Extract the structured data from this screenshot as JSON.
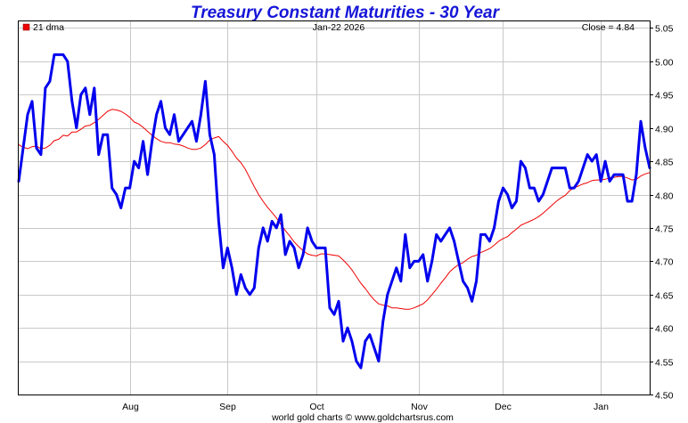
{
  "chart_data": {
    "type": "line",
    "title": "Treasury Constant Maturities - 30 Year",
    "legend_label": "21 dma",
    "date_label": "Jan-22  2026",
    "close_label": "Close = 4.84",
    "footer": "world gold charts © www.goldchartsrus.com",
    "ylim": [
      4.5,
      5.06
    ],
    "yticks": [
      "4.50",
      "4.55",
      "4.60",
      "4.65",
      "4.70",
      "4.75",
      "4.80",
      "4.85",
      "4.90",
      "4.95",
      "5.00",
      "5.05"
    ],
    "xticks": [
      {
        "label": "Aug",
        "index": 25
      },
      {
        "label": "Sep",
        "index": 47
      },
      {
        "label": "Oct",
        "index": 67
      },
      {
        "label": "Nov",
        "index": 90
      },
      {
        "label": "Dec",
        "index": 109
      },
      {
        "label": "Jan",
        "index": 131
      }
    ],
    "n_points": 143,
    "series": [
      {
        "name": "30 Year Yield",
        "color": "#0000ee",
        "values": [
          4.82,
          4.87,
          4.92,
          4.94,
          4.87,
          4.86,
          4.96,
          4.97,
          5.01,
          5.01,
          5.01,
          5.0,
          4.94,
          4.9,
          4.95,
          4.96,
          4.92,
          4.96,
          4.86,
          4.89,
          4.89,
          4.81,
          4.8,
          4.78,
          4.81,
          4.81,
          4.85,
          4.84,
          4.88,
          4.83,
          4.88,
          4.92,
          4.94,
          4.9,
          4.89,
          4.92,
          4.88,
          4.89,
          4.9,
          4.91,
          4.88,
          4.92,
          4.97,
          4.89,
          4.86,
          4.76,
          4.69,
          4.72,
          4.69,
          4.65,
          4.68,
          4.66,
          4.65,
          4.66,
          4.72,
          4.75,
          4.73,
          4.76,
          4.75,
          4.77,
          4.71,
          4.73,
          4.72,
          4.69,
          4.71,
          4.75,
          4.73,
          4.72,
          4.72,
          4.72,
          4.63,
          4.62,
          4.64,
          4.58,
          4.6,
          4.58,
          4.55,
          4.54,
          4.58,
          4.59,
          4.57,
          4.55,
          4.61,
          4.65,
          4.67,
          4.69,
          4.67,
          4.74,
          4.69,
          4.7,
          4.7,
          4.71,
          4.67,
          4.7,
          4.74,
          4.73,
          4.74,
          4.75,
          4.73,
          4.7,
          4.67,
          4.66,
          4.64,
          4.67,
          4.74,
          4.74,
          4.73,
          4.75,
          4.79,
          4.81,
          4.8,
          4.78,
          4.79,
          4.85,
          4.84,
          4.81,
          4.81,
          4.79,
          4.8,
          4.82,
          4.84,
          4.84,
          4.84,
          4.84,
          4.81,
          4.81,
          4.82,
          4.84,
          4.86,
          4.85,
          4.86,
          4.82,
          4.85,
          4.82,
          4.83,
          4.83,
          4.83,
          4.79,
          4.79,
          4.83,
          4.91,
          4.87,
          4.84
        ]
      },
      {
        "name": "21 dma",
        "color": "#ee0000",
        "values": [
          4.875,
          4.871,
          4.869,
          4.872,
          4.873,
          4.869,
          4.87,
          4.874,
          4.881,
          4.883,
          4.889,
          4.888,
          4.894,
          4.894,
          4.898,
          4.903,
          4.904,
          4.908,
          4.913,
          4.919,
          4.925,
          4.928,
          4.927,
          4.925,
          4.921,
          4.916,
          4.909,
          4.906,
          4.901,
          4.895,
          4.889,
          4.884,
          4.88,
          4.878,
          4.878,
          4.876,
          4.875,
          4.873,
          4.87,
          4.868,
          4.868,
          4.87,
          4.875,
          4.882,
          4.885,
          4.887,
          4.88,
          4.874,
          4.865,
          4.855,
          4.848,
          4.838,
          4.825,
          4.812,
          4.8,
          4.79,
          4.781,
          4.773,
          4.765,
          4.755,
          4.746,
          4.738,
          4.729,
          4.722,
          4.716,
          4.711,
          4.709,
          4.708,
          4.711,
          4.711,
          4.71,
          4.709,
          4.708,
          4.702,
          4.695,
          4.687,
          4.677,
          4.667,
          4.659,
          4.65,
          4.642,
          4.636,
          4.634,
          4.633,
          4.63,
          4.63,
          4.629,
          4.628,
          4.628,
          4.63,
          4.633,
          4.636,
          4.642,
          4.65,
          4.658,
          4.667,
          4.675,
          4.684,
          4.69,
          4.695,
          4.698,
          4.703,
          4.707,
          4.709,
          4.713,
          4.716,
          4.719,
          4.724,
          4.73,
          4.734,
          4.737,
          4.743,
          4.748,
          4.754,
          4.757,
          4.76,
          4.763,
          4.767,
          4.772,
          4.778,
          4.784,
          4.79,
          4.795,
          4.799,
          4.806,
          4.81,
          4.813,
          4.816,
          4.818,
          4.821,
          4.822,
          4.822,
          4.823,
          4.825,
          4.826,
          4.827,
          4.827,
          4.825,
          4.822,
          4.823,
          4.828,
          4.831,
          4.833
        ]
      }
    ]
  }
}
